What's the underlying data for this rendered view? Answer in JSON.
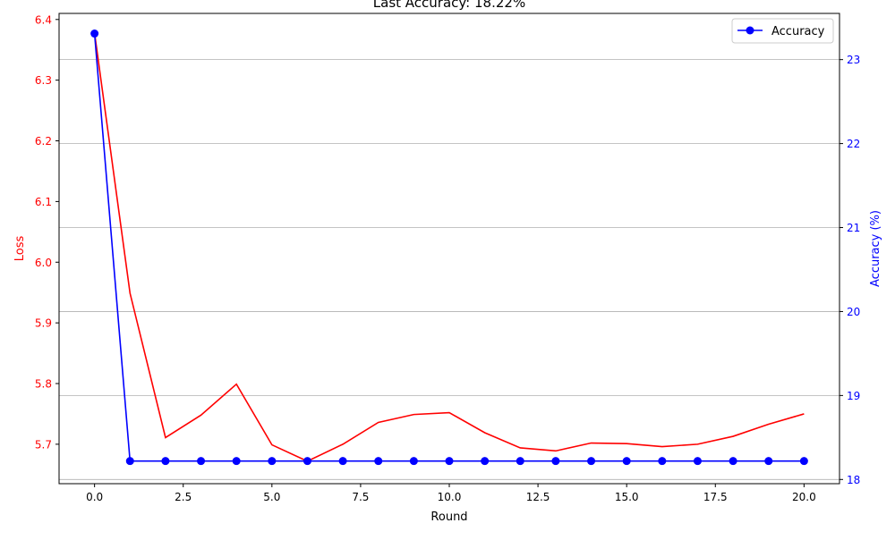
{
  "chart_data": {
    "type": "line",
    "title": "Last Accuracy: 18.22%",
    "xlabel": "Round",
    "ylabel_left": "Loss",
    "ylabel_right": "Accuracy (%)",
    "xlim": [
      -1.0,
      21.0
    ],
    "ylim_left": [
      5.635,
      6.41
    ],
    "ylim_right": [
      17.95,
      23.55
    ],
    "x_ticks": [
      0.0,
      2.5,
      5.0,
      7.5,
      10.0,
      12.5,
      15.0,
      17.5,
      20.0
    ],
    "x_tick_labels": [
      "0.0",
      "2.5",
      "5.0",
      "7.5",
      "10.0",
      "12.5",
      "15.0",
      "17.5",
      "20.0"
    ],
    "y_ticks_left": [
      5.7,
      5.8,
      5.9,
      6.0,
      6.1,
      6.2,
      6.3,
      6.4
    ],
    "y_tick_labels_left": [
      "5.7",
      "5.8",
      "5.9",
      "6.0",
      "6.1",
      "6.2",
      "6.3",
      "6.4"
    ],
    "y_ticks_right": [
      18,
      19,
      20,
      21,
      22,
      23
    ],
    "y_tick_labels_right": [
      "18",
      "19",
      "20",
      "21",
      "22",
      "23"
    ],
    "grid": "horizontal at right-axis ticks",
    "legend_position": "upper-right",
    "colors": {
      "loss": "#ff0000",
      "accuracy": "#0000ff",
      "grid": "#b0b0b0",
      "axis": "#000000"
    },
    "x": [
      0,
      1,
      2,
      3,
      4,
      5,
      6,
      7,
      8,
      9,
      10,
      11,
      12,
      13,
      14,
      15,
      16,
      17,
      18,
      19,
      20
    ],
    "series": [
      {
        "name": "",
        "axis": "left",
        "color": "#ff0000",
        "marker": "none",
        "values": [
          6.378,
          5.949,
          5.711,
          5.748,
          5.799,
          5.699,
          5.672,
          5.7,
          5.736,
          5.749,
          5.752,
          5.719,
          5.694,
          5.689,
          5.702,
          5.701,
          5.696,
          5.7,
          5.713,
          5.733,
          5.75
        ]
      },
      {
        "name": "Accuracy",
        "axis": "right",
        "color": "#0000ff",
        "marker": "circle",
        "values": [
          23.31,
          18.22,
          18.22,
          18.22,
          18.22,
          18.22,
          18.22,
          18.22,
          18.22,
          18.22,
          18.22,
          18.22,
          18.22,
          18.22,
          18.22,
          18.22,
          18.22,
          18.22,
          18.22,
          18.22,
          18.22
        ]
      }
    ]
  }
}
